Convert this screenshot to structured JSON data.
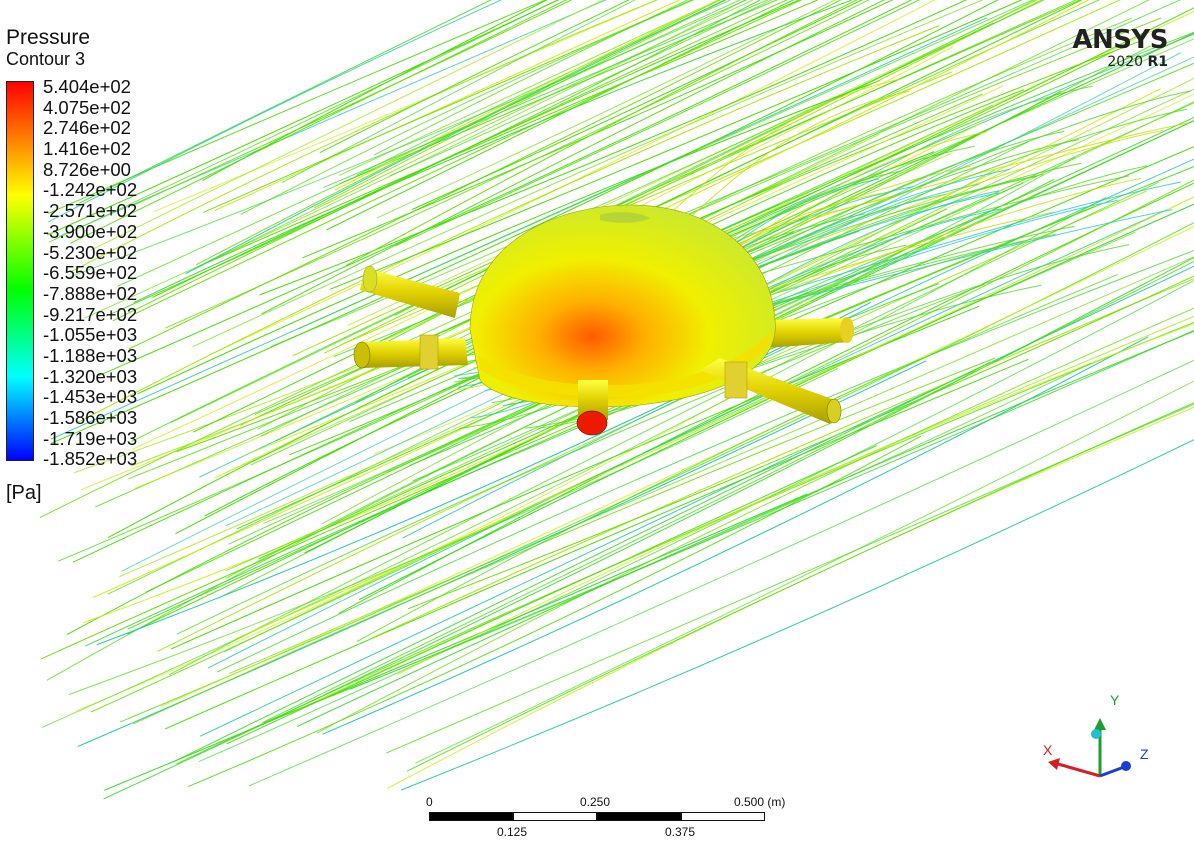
{
  "legend": {
    "title": "Pressure",
    "subtitle": "Contour 3",
    "units": "[Pa]",
    "ticks": [
      "5.404e+02",
      "4.075e+02",
      "2.746e+02",
      "1.416e+02",
      "8.726e+00",
      "-1.242e+02",
      "-2.571e+02",
      "-3.900e+02",
      "-5.230e+02",
      "-6.559e+02",
      "-7.888e+02",
      "-9.217e+02",
      "-1.055e+03",
      "-1.188e+03",
      "-1.320e+03",
      "-1.453e+03",
      "-1.586e+03",
      "-1.719e+03",
      "-1.852e+03"
    ],
    "colors": {
      "max": "#ff0000",
      "high": "#ff8000",
      "mid_high": "#ffff00",
      "mid": "#00ff00",
      "mid_low": "#00ffff",
      "min": "#0000ff"
    }
  },
  "brand": {
    "name": "ANSYS",
    "version": "2020",
    "release": "R1"
  },
  "scale_bar": {
    "top_labels": [
      "0",
      "0.250",
      "0.500 (m)"
    ],
    "bottom_labels": [
      "0.125",
      "0.375"
    ]
  },
  "axes": {
    "x_label": "X",
    "y_label": "Y",
    "z_label": "Z",
    "x_color": "#d42020",
    "y_color": "#18a030",
    "z_color": "#1a3fcf"
  },
  "scene": {
    "streamline_color": "#44dd00",
    "body_color": "#e8e800"
  }
}
